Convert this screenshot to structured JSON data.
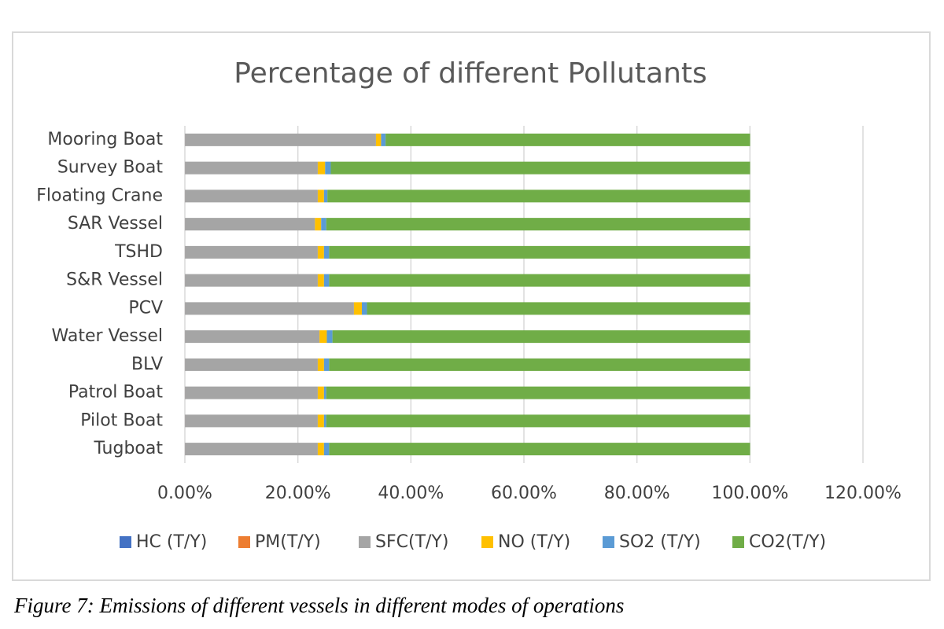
{
  "chart_data": {
    "type": "stacked-bar-horizontal",
    "title": "Percentage of different Pollutants",
    "categories": [
      "Tugboat",
      "Pilot Boat",
      "Patrol Boat",
      "BLV",
      "Water Vessel",
      "PCV",
      "S&R Vessel",
      "TSHD",
      "SAR Vessel",
      "Floating Crane",
      "Survey Boat",
      "Mooring Boat"
    ],
    "series": [
      {
        "name": "HC (T/Y)",
        "color": "#4472c4",
        "values": [
          0.01,
          0.01,
          0.01,
          0.01,
          0.01,
          0.01,
          0.01,
          0.01,
          0.01,
          0.01,
          0.01,
          0.01
        ]
      },
      {
        "name": "PM(T/Y)",
        "color": "#ed7d31",
        "values": [
          0.01,
          0.01,
          0.01,
          0.01,
          0.01,
          0.01,
          0.01,
          0.01,
          0.01,
          0.01,
          0.01,
          0.01
        ]
      },
      {
        "name": "SFC(T/Y)",
        "color": "#a5a5a5",
        "values": [
          23.5,
          23.5,
          23.5,
          23.5,
          23.8,
          29.9,
          23.5,
          23.5,
          23.0,
          23.5,
          23.5,
          33.8
        ]
      },
      {
        "name": "NO (T/Y)",
        "color": "#ffc000",
        "values": [
          1.1,
          1.1,
          1.1,
          1.1,
          1.3,
          1.4,
          1.1,
          1.1,
          1.1,
          1.1,
          1.3,
          0.9
        ]
      },
      {
        "name": "SO2 (T/Y)",
        "color": "#5b9bd5",
        "values": [
          0.9,
          0.4,
          0.4,
          0.9,
          1.0,
          0.9,
          0.9,
          0.9,
          0.9,
          0.6,
          1.0,
          0.8
        ]
      },
      {
        "name": "CO2(T/Y)",
        "color": "#70ad47",
        "values": [
          74.5,
          75.0,
          75.0,
          74.5,
          73.9,
          67.8,
          74.5,
          74.5,
          75.0,
          74.8,
          74.2,
          64.5
        ]
      }
    ],
    "xlim": [
      0,
      120
    ],
    "xticks": [
      {
        "value": 0,
        "label": "0.00%"
      },
      {
        "value": 20,
        "label": "20.00%"
      },
      {
        "value": 40,
        "label": "40.00%"
      },
      {
        "value": 60,
        "label": "60.00%"
      },
      {
        "value": 80,
        "label": "80.00%"
      },
      {
        "value": 100,
        "label": "100.00%"
      },
      {
        "value": 120,
        "label": "120.00%"
      }
    ],
    "grid": true,
    "legend": "bottom"
  },
  "caption": "Figure 7: Emissions of different vessels in different modes of operations"
}
